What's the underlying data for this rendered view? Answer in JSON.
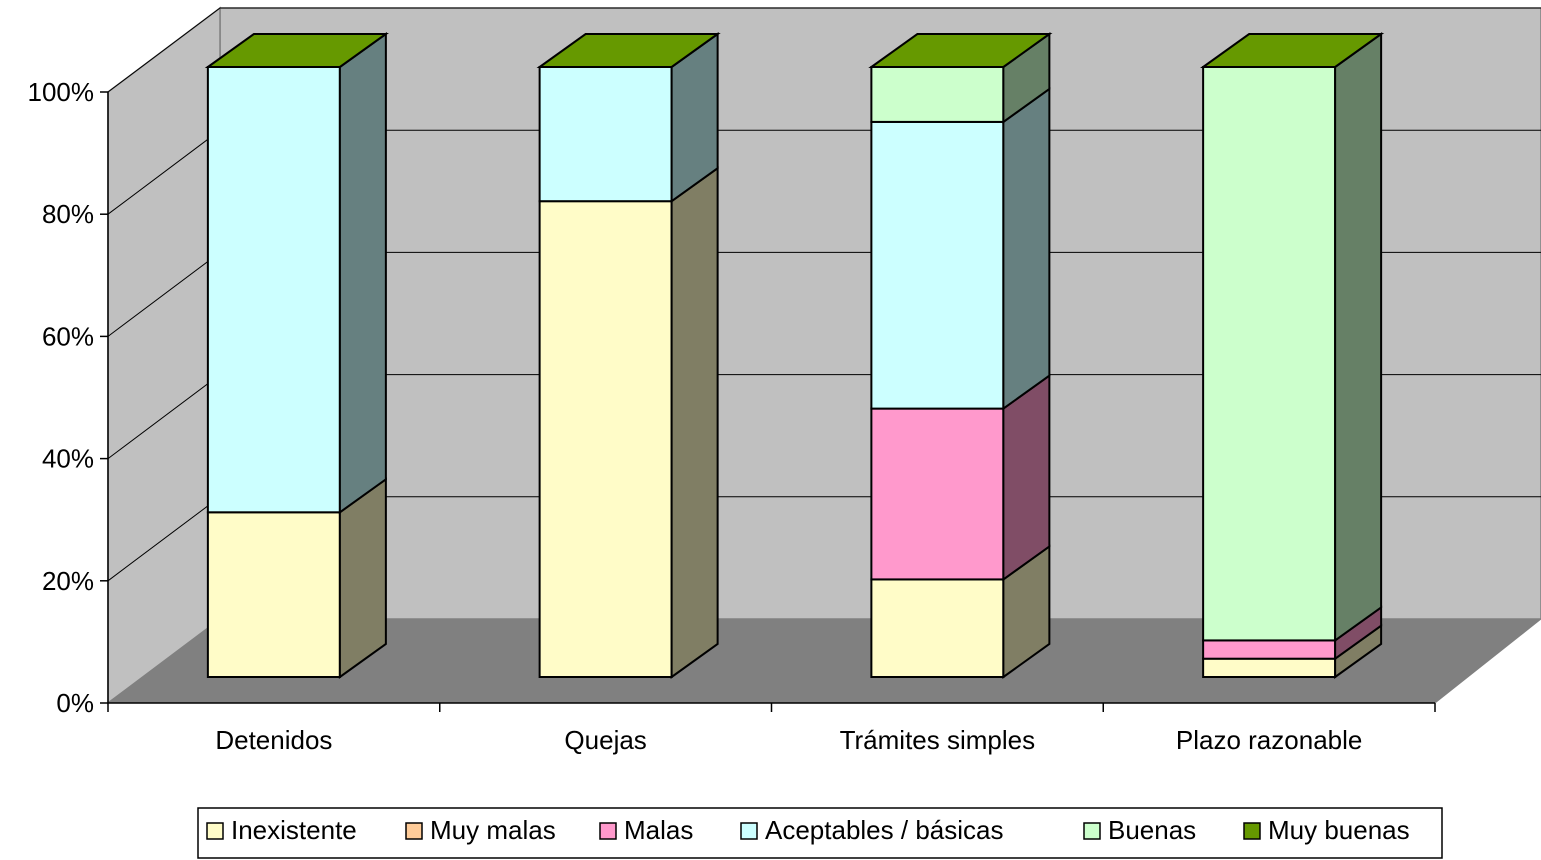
{
  "chart_data": {
    "type": "bar",
    "stacked": true,
    "normalized_percent": true,
    "three_d": true,
    "categories": [
      "Detenidos",
      "Quejas",
      "Trámites simples",
      "Plazo razonable"
    ],
    "series": [
      {
        "name": "Inexistente",
        "color": "#FFFCC8",
        "values": [
          27,
          78,
          16,
          3
        ]
      },
      {
        "name": "Muy malas",
        "color": "#FFCC99",
        "values": [
          0,
          0,
          0,
          0
        ]
      },
      {
        "name": "Malas",
        "color": "#FF99CC",
        "values": [
          0,
          0,
          28,
          3
        ]
      },
      {
        "name": "Aceptables / básicas",
        "color": "#CCFFFF",
        "values": [
          73,
          22,
          47,
          0
        ]
      },
      {
        "name": "Buenas",
        "color": "#CCFFCC",
        "values": [
          0,
          0,
          9,
          94
        ]
      },
      {
        "name": "Muy buenas",
        "color": "#669900",
        "values": [
          0,
          0,
          0,
          0
        ]
      }
    ],
    "y_ticks": [
      "0%",
      "20%",
      "40%",
      "60%",
      "80%",
      "100%"
    ],
    "ylim": [
      0,
      100
    ],
    "grid": true,
    "legend_position": "bottom"
  }
}
